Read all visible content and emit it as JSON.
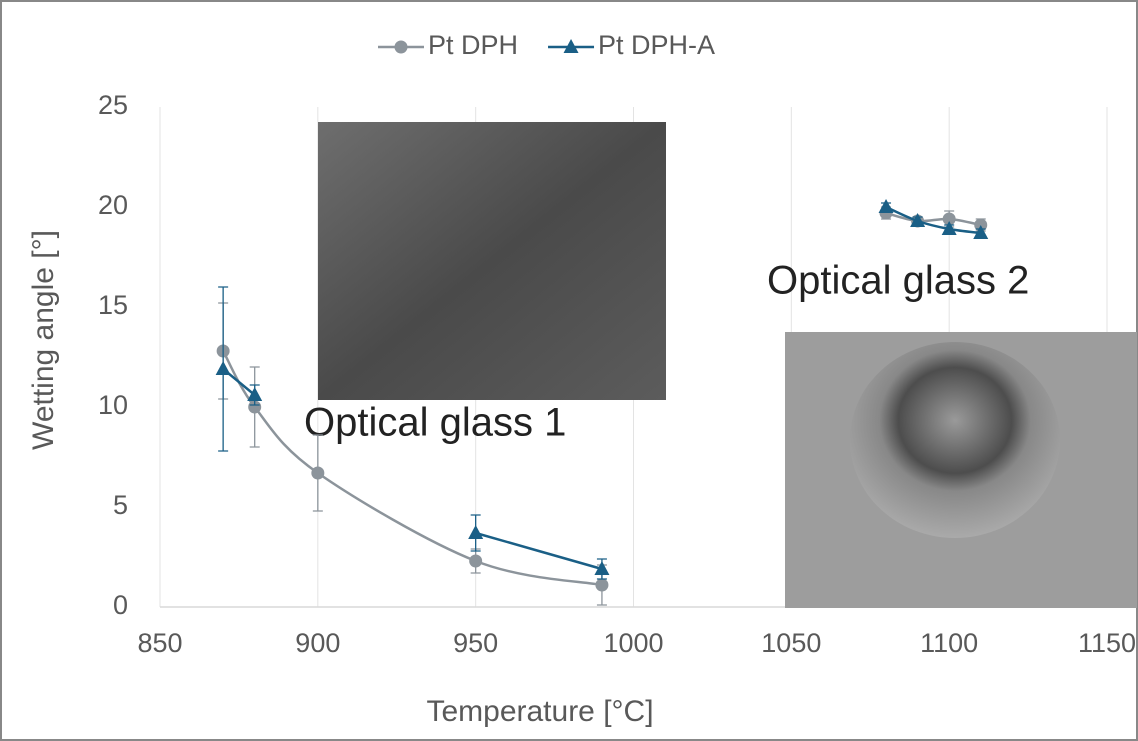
{
  "chart_data": {
    "type": "line",
    "x_label": "Temperature [°C]",
    "y_label": "Wetting angle [°]",
    "x": [
      870,
      880,
      900,
      950,
      990,
      null,
      1080,
      1090,
      1100,
      1110
    ],
    "series": [
      {
        "name": "Pt DPH",
        "color": "#8c949b",
        "marker": "circle",
        "values": [
          12.8,
          10.0,
          6.7,
          2.3,
          1.1,
          null,
          19.7,
          19.3,
          19.4,
          19.1
        ],
        "errors": [
          2.4,
          2.0,
          1.9,
          0.6,
          1.0,
          null,
          0.3,
          0.2,
          0.4,
          0.3
        ]
      },
      {
        "name": "Pt DPH-A",
        "color": "#1a5f86",
        "marker": "triangle",
        "values": [
          11.9,
          10.6,
          null,
          3.7,
          1.9,
          null,
          20.0,
          19.3,
          18.9,
          18.7
        ],
        "errors": [
          4.1,
          0.5,
          null,
          0.9,
          0.5,
          null,
          0.2,
          0.2,
          0.2,
          0.2
        ]
      }
    ],
    "annotations": [
      "Optical glass 1",
      "Optical glass 2"
    ],
    "xlim": [
      850,
      1150
    ],
    "xticks": [
      850,
      900,
      950,
      1000,
      1050,
      1100,
      1150
    ],
    "ylim": [
      0,
      25
    ],
    "yticks": [
      0,
      5,
      10,
      15,
      20,
      25
    ],
    "grid": true,
    "legend": "top"
  }
}
